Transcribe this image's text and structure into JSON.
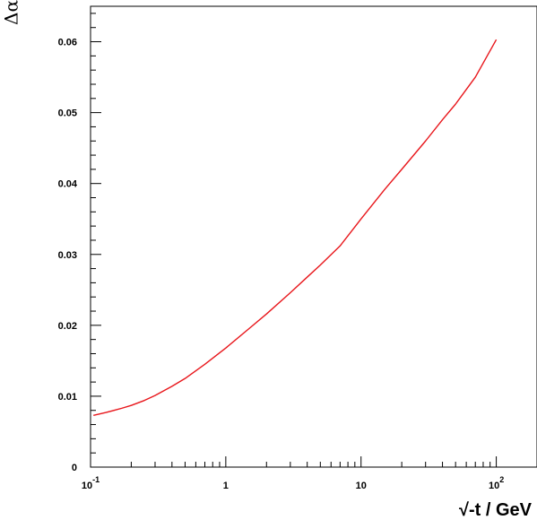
{
  "chart_data": {
    "type": "line",
    "title": "",
    "xlabel": "√-t / GeV",
    "ylabel": "Δα",
    "x_scale": "log",
    "xlim": [
      0.1,
      200
    ],
    "ylim": [
      0,
      0.065
    ],
    "grid": false,
    "x_ticks": [
      {
        "value": 0.1,
        "base": "10",
        "exp": "-1"
      },
      {
        "value": 1,
        "base": "1",
        "exp": ""
      },
      {
        "value": 10,
        "base": "10",
        "exp": ""
      },
      {
        "value": 100,
        "base": "10",
        "exp": "2"
      }
    ],
    "y_ticks": [
      {
        "value": 0,
        "label": "0"
      },
      {
        "value": 0.01,
        "label": "0.01"
      },
      {
        "value": 0.02,
        "label": "0.02"
      },
      {
        "value": 0.03,
        "label": "0.03"
      },
      {
        "value": 0.04,
        "label": "0.04"
      },
      {
        "value": 0.05,
        "label": "0.05"
      },
      {
        "value": 0.06,
        "label": "0.06"
      }
    ],
    "series": [
      {
        "color": "#e8161b",
        "x": [
          0.105,
          0.13,
          0.17,
          0.2,
          0.25,
          0.3,
          0.4,
          0.5,
          0.7,
          1,
          1.5,
          2,
          3,
          4,
          5,
          7,
          10,
          15,
          20,
          30,
          40,
          50,
          70,
          100
        ],
        "y": [
          0.0073,
          0.0077,
          0.0083,
          0.0087,
          0.0094,
          0.0101,
          0.0114,
          0.0125,
          0.0145,
          0.0168,
          0.0196,
          0.0216,
          0.0246,
          0.0268,
          0.0285,
          0.0312,
          0.035,
          0.0392,
          0.042,
          0.046,
          0.049,
          0.0512,
          0.055,
          0.0603
        ]
      }
    ]
  }
}
